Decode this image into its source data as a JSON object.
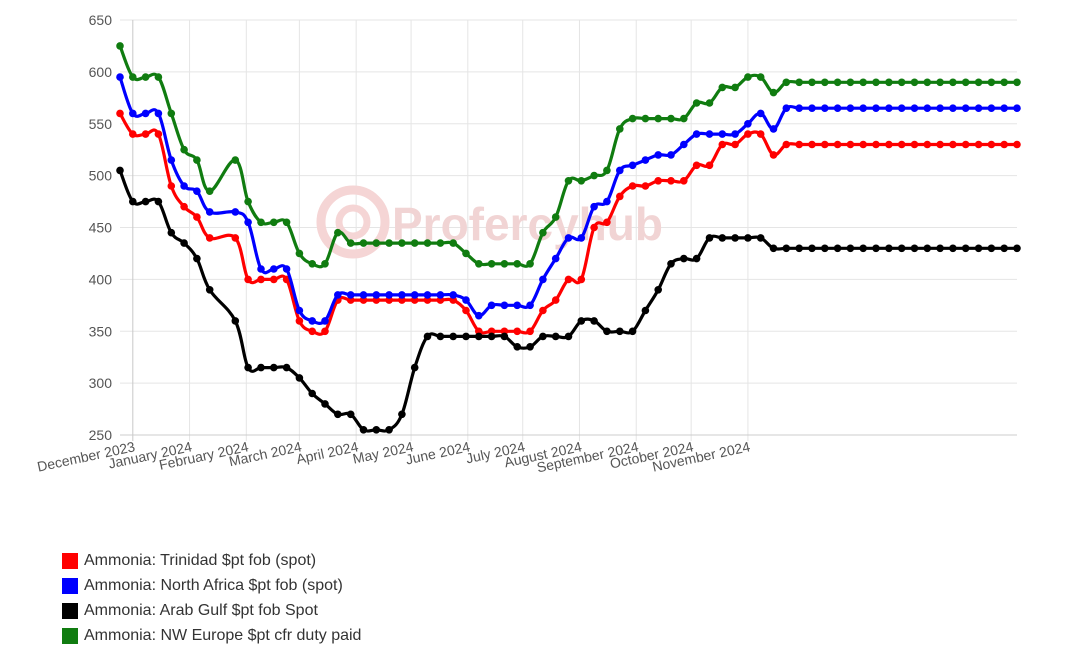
{
  "watermark": "Profercyhub",
  "chart_data": {
    "type": "line",
    "ylim": [
      250,
      650
    ],
    "yticks": [
      250,
      300,
      350,
      400,
      450,
      500,
      550,
      600,
      650
    ],
    "x_tick_labels": [
      "December 2023",
      "January 2024",
      "February 2024",
      "March 2024",
      "April 2024",
      "May 2024",
      "June 2024",
      "July 2024",
      "August 2024",
      "September 2024",
      "October 2024",
      "November 2024"
    ],
    "x_dates": [
      "2023-11-24",
      "2023-12-01",
      "2023-12-08",
      "2023-12-15",
      "2023-12-22",
      "2023-12-29",
      "2024-01-05",
      "2024-01-12",
      "2024-01-26",
      "2024-02-02",
      "2024-02-09",
      "2024-02-16",
      "2024-02-23",
      "2024-03-01",
      "2024-03-08",
      "2024-03-15",
      "2024-03-22",
      "2024-03-29",
      "2024-04-05",
      "2024-04-12",
      "2024-04-19",
      "2024-04-26",
      "2024-05-03",
      "2024-05-10",
      "2024-05-17",
      "2024-05-24",
      "2024-05-31",
      "2024-06-07",
      "2024-06-14",
      "2024-06-21",
      "2024-06-28",
      "2024-07-05",
      "2024-07-12",
      "2024-07-19",
      "2024-07-26",
      "2024-08-02",
      "2024-08-09",
      "2024-08-16",
      "2024-08-23",
      "2024-08-30",
      "2024-09-06",
      "2024-09-13",
      "2024-09-20",
      "2024-09-27",
      "2024-10-04",
      "2024-10-11",
      "2024-10-18",
      "2024-10-25",
      "2024-11-01",
      "2024-11-08",
      "2024-11-15",
      "2024-11-22",
      "2024-11-29",
      "2024-12-06",
      "2024-12-13",
      "2024-12-20",
      "2024-12-27",
      "2025-01-03",
      "2025-01-10",
      "2025-01-17",
      "2025-01-24",
      "2025-01-31",
      "2025-02-07",
      "2025-02-14",
      "2025-02-21",
      "2025-02-28",
      "2025-03-07",
      "2025-03-14",
      "2025-03-21",
      "2025-03-28"
    ],
    "series": [
      {
        "name": "Ammonia: Trinidad $pt fob (spot)",
        "color": "#ff0000",
        "values": [
          560,
          540,
          540,
          540,
          490,
          470,
          460,
          440,
          440,
          400,
          400,
          400,
          400,
          360,
          350,
          350,
          380,
          380,
          380,
          380,
          380,
          380,
          380,
          380,
          380,
          380,
          370,
          350,
          350,
          350,
          350,
          350,
          370,
          380,
          400,
          400,
          450,
          455,
          480,
          490,
          490,
          495,
          495,
          495,
          510,
          510,
          530,
          530,
          540,
          540,
          520,
          530,
          530,
          530,
          530,
          530,
          530,
          530,
          530,
          530,
          530,
          530,
          530,
          530,
          530,
          530,
          530,
          530,
          530,
          530
        ]
      },
      {
        "name": "Ammonia: North Africa $pt fob (spot)",
        "color": "#0000ff",
        "values": [
          595,
          560,
          560,
          560,
          515,
          490,
          485,
          465,
          465,
          455,
          410,
          410,
          410,
          370,
          360,
          360,
          385,
          385,
          385,
          385,
          385,
          385,
          385,
          385,
          385,
          385,
          380,
          365,
          375,
          375,
          375,
          375,
          400,
          420,
          440,
          440,
          470,
          475,
          505,
          510,
          515,
          520,
          520,
          530,
          540,
          540,
          540,
          540,
          550,
          560,
          545,
          565,
          565,
          565,
          565,
          565,
          565,
          565,
          565,
          565,
          565,
          565,
          565,
          565,
          565,
          565,
          565,
          565,
          565,
          565
        ]
      },
      {
        "name": "Ammonia: Arab Gulf $pt fob Spot",
        "color": "#000000",
        "values": [
          505,
          475,
          475,
          475,
          445,
          435,
          420,
          390,
          360,
          315,
          315,
          315,
          315,
          305,
          290,
          280,
          270,
          270,
          255,
          255,
          255,
          270,
          315,
          345,
          345,
          345,
          345,
          345,
          345,
          345,
          335,
          335,
          345,
          345,
          345,
          360,
          360,
          350,
          350,
          350,
          370,
          390,
          415,
          420,
          420,
          440,
          440,
          440,
          440,
          440,
          430,
          430,
          430,
          430,
          430,
          430,
          430,
          430,
          430,
          430,
          430,
          430,
          430,
          430,
          430,
          430,
          430,
          430,
          430,
          430
        ]
      },
      {
        "name": "Ammonia: NW Europe $pt cfr duty paid",
        "color": "#107c10",
        "values": [
          625,
          595,
          595,
          595,
          560,
          525,
          515,
          485,
          515,
          475,
          455,
          455,
          455,
          425,
          415,
          415,
          445,
          435,
          435,
          435,
          435,
          435,
          435,
          435,
          435,
          435,
          425,
          415,
          415,
          415,
          415,
          415,
          445,
          460,
          495,
          495,
          500,
          505,
          545,
          555,
          555,
          555,
          555,
          555,
          570,
          570,
          585,
          585,
          595,
          595,
          580,
          590,
          590,
          590,
          590,
          590,
          590,
          590,
          590,
          590,
          590,
          590,
          590,
          590,
          590,
          590,
          590,
          590,
          590,
          590
        ]
      }
    ]
  },
  "legend": {
    "items": [
      {
        "label": "Ammonia: Trinidad $pt fob (spot)",
        "color": "#ff0000"
      },
      {
        "label": "Ammonia: North Africa $pt fob (spot)",
        "color": "#0000ff"
      },
      {
        "label": "Ammonia: Arab Gulf $pt fob Spot",
        "color": "#000000"
      },
      {
        "label": "Ammonia: NW Europe $pt cfr duty paid",
        "color": "#107c10"
      }
    ]
  }
}
